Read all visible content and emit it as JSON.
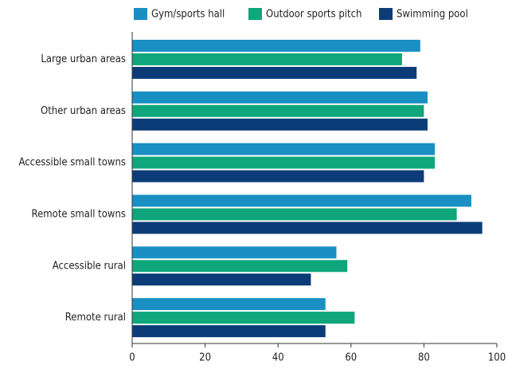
{
  "chart_data": {
    "type": "barh",
    "categories": [
      "Large urban areas",
      "Other urban areas",
      "Accessible small towns",
      "Remote small towns",
      "Accessible rural",
      "Remote rural"
    ],
    "series": [
      {
        "name": "Gym/sports hall",
        "color": "#1a8fc4",
        "values": [
          79,
          81,
          83,
          93,
          56,
          53
        ]
      },
      {
        "name": "Outdoor sports pitch",
        "color": "#0ea67a",
        "values": [
          74,
          80,
          83,
          89,
          59,
          61
        ]
      },
      {
        "name": "Swimming pool",
        "color": "#0c3c78",
        "values": [
          78,
          81,
          80,
          96,
          49,
          53
        ]
      }
    ],
    "xlim": [
      0,
      100
    ],
    "xticks": [
      0,
      20,
      40,
      60,
      80,
      100
    ],
    "grid": false,
    "legend": "top"
  }
}
